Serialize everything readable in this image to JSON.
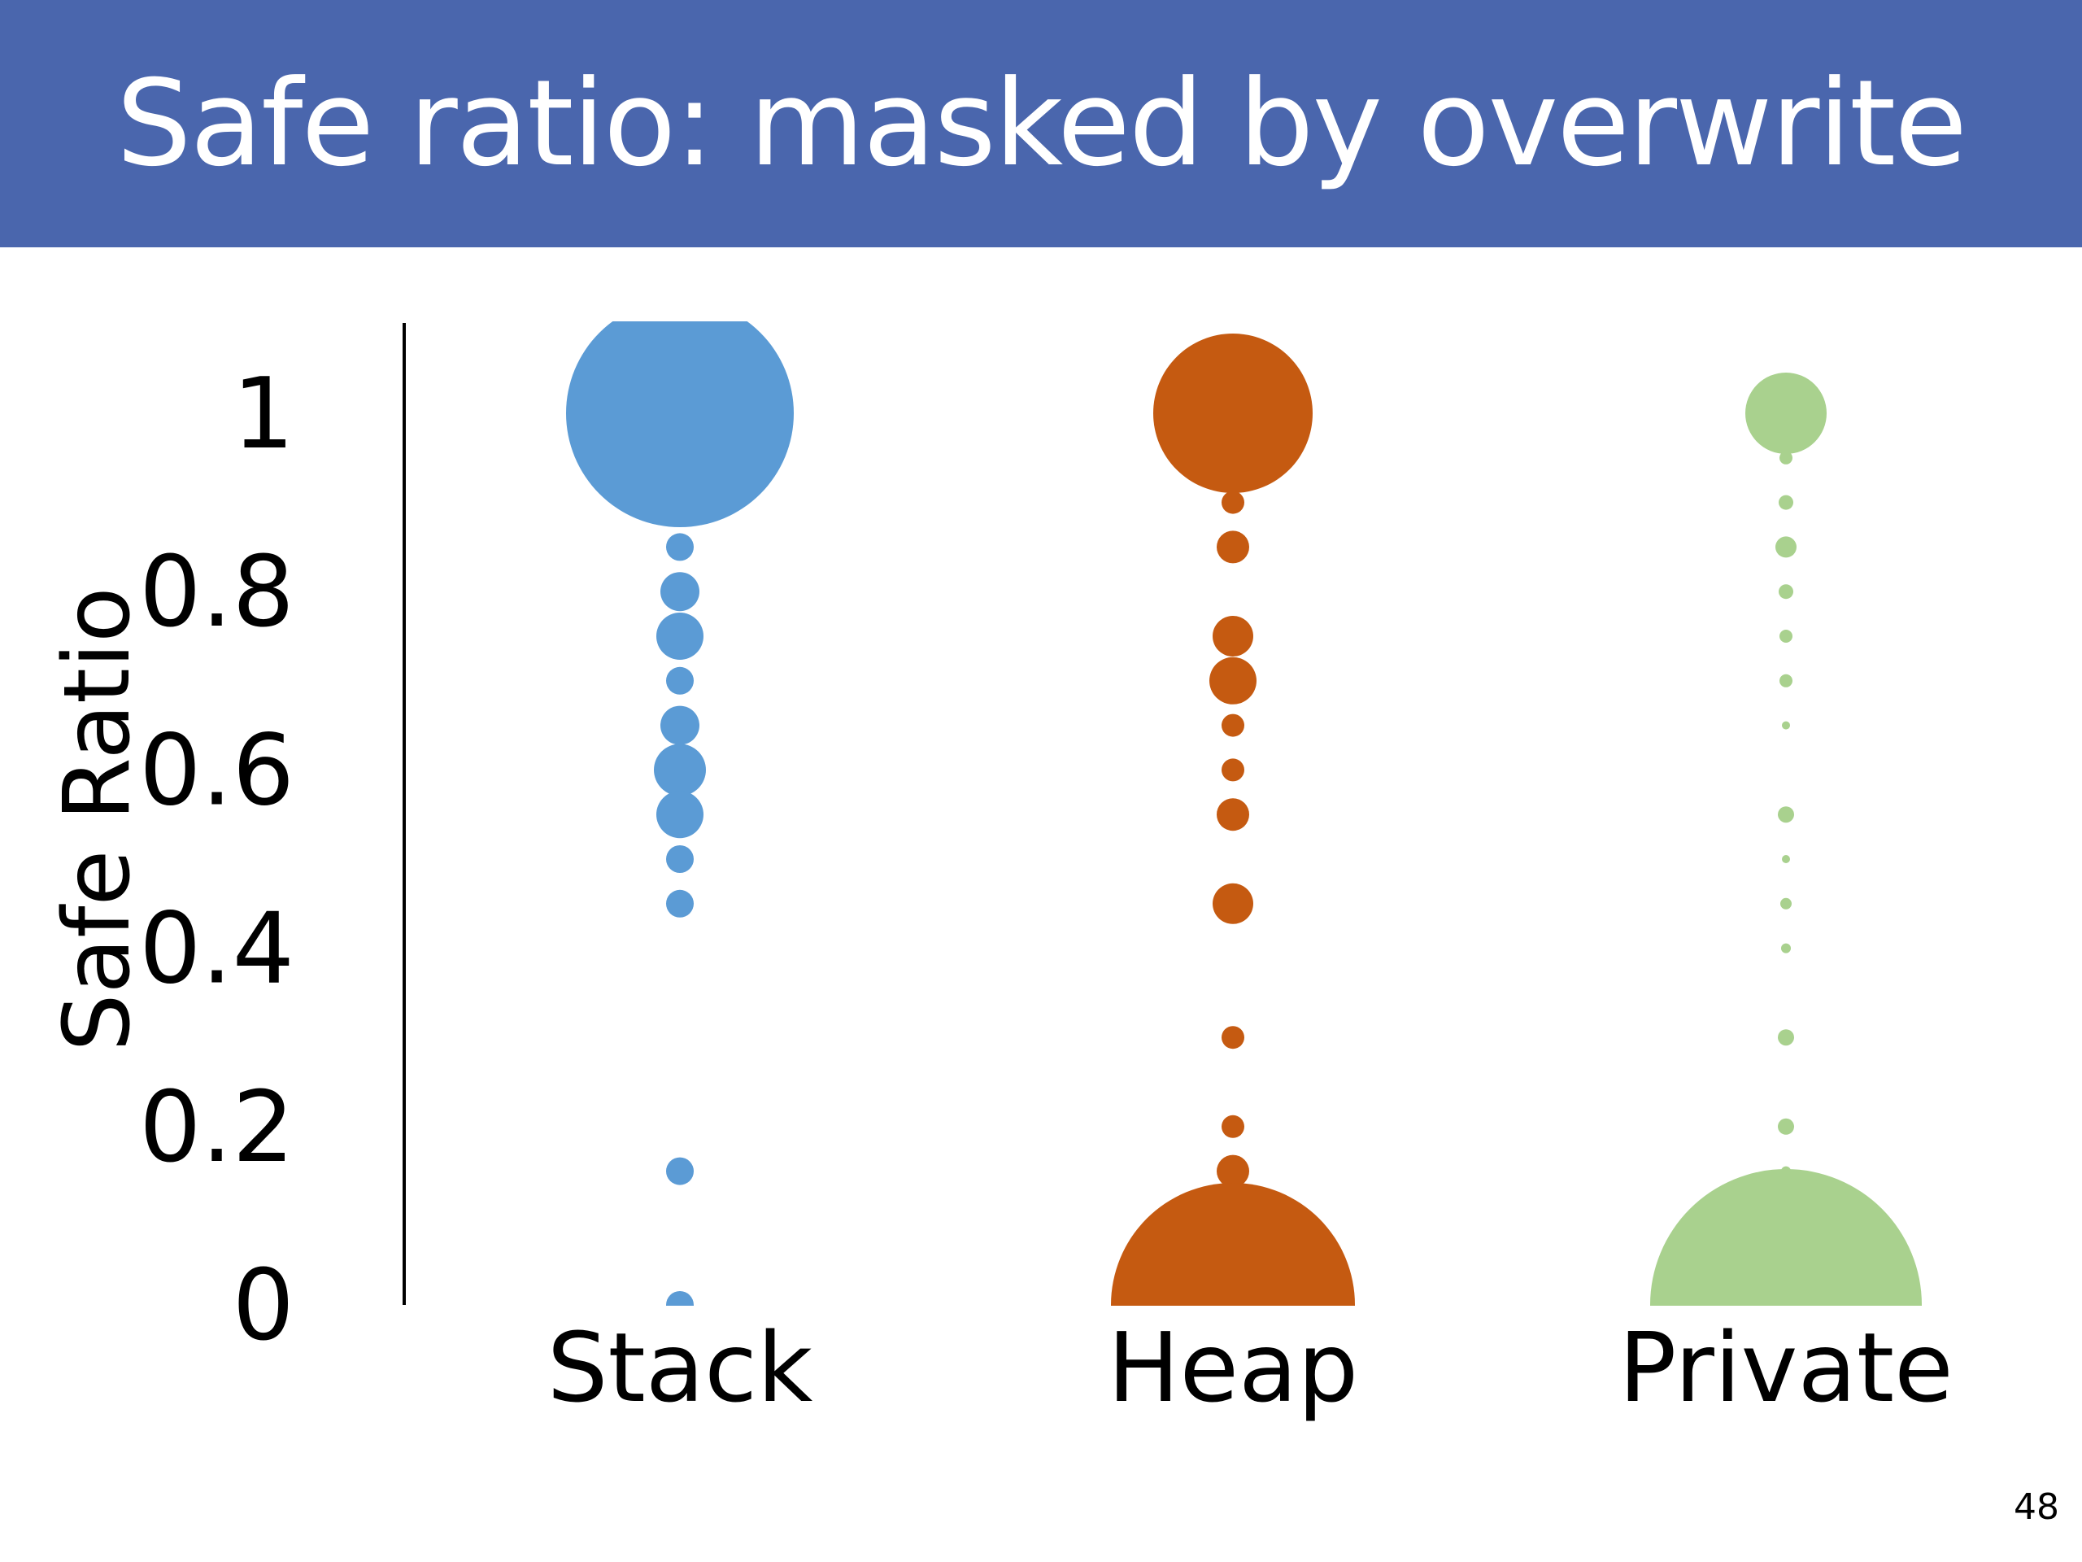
{
  "slide": {
    "title": "Safe ratio: masked by overwrite",
    "number": "48"
  },
  "colors": {
    "title_bar": "#4a66ad",
    "stack": "#5b9bd5",
    "heap": "#c55a11",
    "private": "#a9d18e"
  },
  "chart_data": {
    "type": "scatter",
    "subtype": "bubble",
    "title": "",
    "xlabel": "",
    "ylabel": "Safe Ratio",
    "categories": [
      "Stack",
      "Heap",
      "Private"
    ],
    "ylim": [
      0,
      1
    ],
    "yticks": [
      0,
      0.2,
      0.4,
      0.6,
      0.8,
      1
    ],
    "ytick_labels": [
      "0",
      "0.2",
      "0.4",
      "0.6",
      "0.8",
      "1"
    ],
    "grid": false,
    "legend": "none",
    "bubble_size_unit": "relative bubble radius",
    "series": [
      {
        "category": "Stack",
        "color": "#5b9bd5",
        "points": [
          {
            "y": 1.0,
            "size": 140
          },
          {
            "y": 0.85,
            "size": 17
          },
          {
            "y": 0.8,
            "size": 24
          },
          {
            "y": 0.75,
            "size": 29
          },
          {
            "y": 0.7,
            "size": 17
          },
          {
            "y": 0.65,
            "size": 24
          },
          {
            "y": 0.6,
            "size": 32
          },
          {
            "y": 0.55,
            "size": 29
          },
          {
            "y": 0.5,
            "size": 17
          },
          {
            "y": 0.45,
            "size": 17
          },
          {
            "y": 0.15,
            "size": 17
          },
          {
            "y": 0.0,
            "size": 17
          }
        ]
      },
      {
        "category": "Heap",
        "color": "#c55a11",
        "points": [
          {
            "y": 1.0,
            "size": 98
          },
          {
            "y": 0.9,
            "size": 14
          },
          {
            "y": 0.85,
            "size": 20
          },
          {
            "y": 0.75,
            "size": 25
          },
          {
            "y": 0.7,
            "size": 29
          },
          {
            "y": 0.65,
            "size": 14
          },
          {
            "y": 0.6,
            "size": 14
          },
          {
            "y": 0.55,
            "size": 20
          },
          {
            "y": 0.45,
            "size": 25
          },
          {
            "y": 0.3,
            "size": 14
          },
          {
            "y": 0.2,
            "size": 14
          },
          {
            "y": 0.15,
            "size": 20
          },
          {
            "y": 0.0,
            "size": 150
          }
        ]
      },
      {
        "category": "Private",
        "color": "#a9d18e",
        "points": [
          {
            "y": 1.0,
            "size": 50
          },
          {
            "y": 0.95,
            "size": 8
          },
          {
            "y": 0.9,
            "size": 9
          },
          {
            "y": 0.85,
            "size": 13
          },
          {
            "y": 0.8,
            "size": 9
          },
          {
            "y": 0.75,
            "size": 8
          },
          {
            "y": 0.7,
            "size": 8
          },
          {
            "y": 0.65,
            "size": 5
          },
          {
            "y": 0.55,
            "size": 10
          },
          {
            "y": 0.5,
            "size": 5
          },
          {
            "y": 0.45,
            "size": 7
          },
          {
            "y": 0.4,
            "size": 6
          },
          {
            "y": 0.3,
            "size": 10
          },
          {
            "y": 0.2,
            "size": 10
          },
          {
            "y": 0.15,
            "size": 6
          },
          {
            "y": 0.0,
            "size": 167
          }
        ]
      }
    ]
  }
}
